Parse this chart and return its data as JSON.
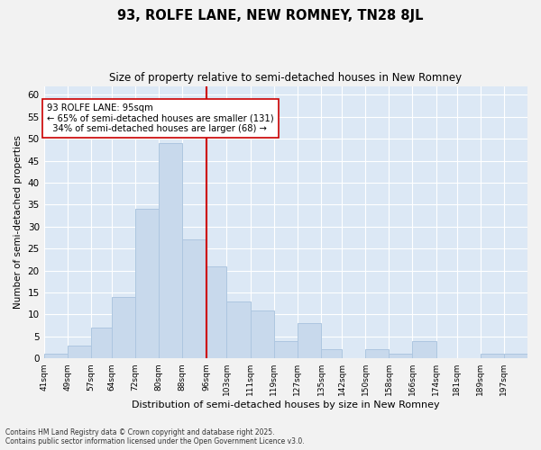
{
  "title": "93, ROLFE LANE, NEW ROMNEY, TN28 8JL",
  "subtitle": "Size of property relative to semi-detached houses in New Romney",
  "xlabel": "Distribution of semi-detached houses by size in New Romney",
  "ylabel": "Number of semi-detached properties",
  "bar_color": "#c8d9ec",
  "bar_edge_color": "#adc6e0",
  "background_color": "#dce8f5",
  "grid_color": "#ffffff",
  "vline_x": 96,
  "vline_color": "#cc0000",
  "annotation_text": "93 ROLFE LANE: 95sqm\n← 65% of semi-detached houses are smaller (131)\n  34% of semi-detached houses are larger (68) →",
  "annotation_box_color": "#ffffff",
  "annotation_box_edge": "#cc0000",
  "footnote1": "Contains HM Land Registry data © Crown copyright and database right 2025.",
  "footnote2": "Contains public sector information licensed under the Open Government Licence v3.0.",
  "bins": [
    41,
    49,
    57,
    64,
    72,
    80,
    88,
    96,
    103,
    111,
    119,
    127,
    135,
    142,
    150,
    158,
    166,
    174,
    181,
    189,
    197,
    205
  ],
  "bin_labels": [
    "41sqm",
    "49sqm",
    "57sqm",
    "64sqm",
    "72sqm",
    "80sqm",
    "88sqm",
    "96sqm",
    "103sqm",
    "111sqm",
    "119sqm",
    "127sqm",
    "135sqm",
    "142sqm",
    "150sqm",
    "158sqm",
    "166sqm",
    "174sqm",
    "181sqm",
    "189sqm",
    "197sqm"
  ],
  "values": [
    1,
    3,
    7,
    14,
    34,
    49,
    27,
    21,
    13,
    11,
    4,
    8,
    2,
    0,
    2,
    1,
    4,
    0,
    0,
    1,
    1
  ],
  "ylim": [
    0,
    62
  ],
  "yticks": [
    0,
    5,
    10,
    15,
    20,
    25,
    30,
    35,
    40,
    45,
    50,
    55,
    60
  ]
}
